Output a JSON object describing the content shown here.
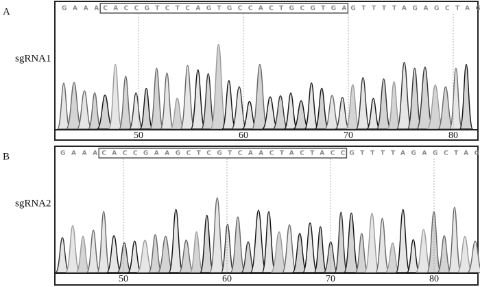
{
  "panels": [
    {
      "letter": "A",
      "name": "sgRNA1",
      "seq_before": "GAAA",
      "seq_boxed": "CACCGTCTCAGTGCCACTGCGTGA",
      "seq_after": "GTTTTAGAGCTAG",
      "ticks": [
        "50",
        "60",
        "70",
        "80"
      ]
    },
    {
      "letter": "B",
      "name": "sgRNA2",
      "seq_before": "GAAA",
      "seq_boxed": "CACCGAAGCTCGTCAACTACTACC",
      "seq_after": "GTTTTAGAGCTAG",
      "ticks": [
        "50",
        "60",
        "70",
        "80"
      ]
    }
  ]
}
